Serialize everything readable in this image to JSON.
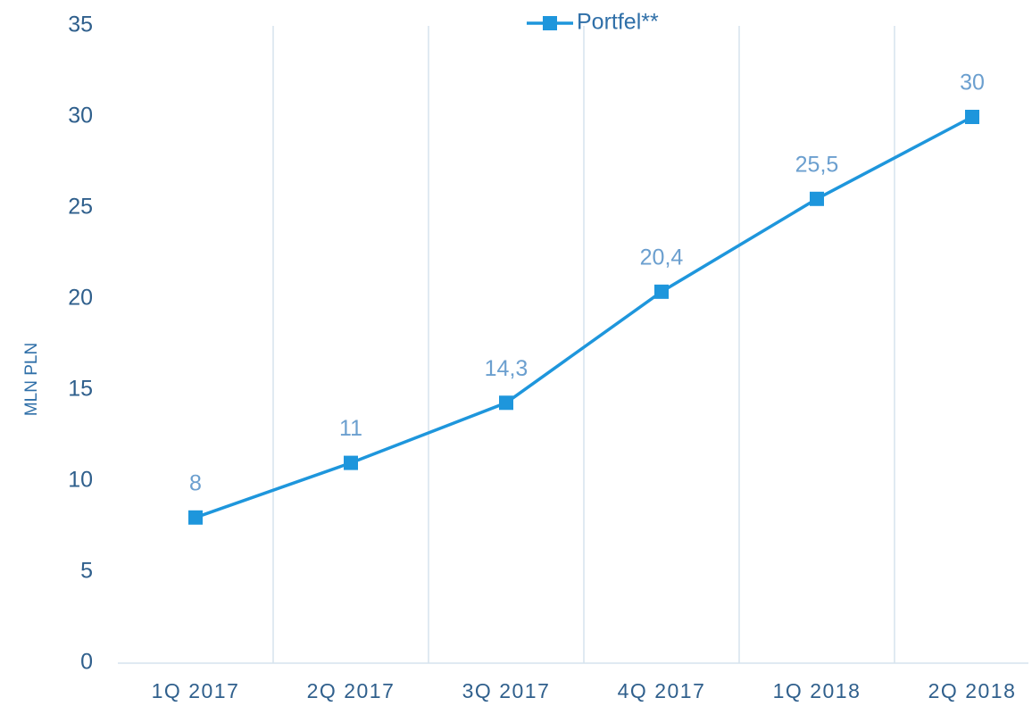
{
  "chart_data": {
    "type": "line",
    "ylabel": "MLN PLN",
    "categories": [
      "1Q 2017",
      "2Q 2017",
      "3Q 2017",
      "4Q 2017",
      "1Q 2018",
      "2Q 2018"
    ],
    "series": [
      {
        "name": "Portfel**",
        "color": "#1e96dc",
        "values": [
          8,
          11,
          14.3,
          20.4,
          25.5,
          30
        ],
        "value_labels": [
          "8",
          "11",
          "14,3",
          "20,4",
          "25,5",
          "30"
        ]
      }
    ],
    "ylim": [
      0,
      35
    ],
    "yticks": [
      0,
      5,
      10,
      15,
      20,
      25,
      30,
      35
    ],
    "grid": "x",
    "legend": "top"
  }
}
